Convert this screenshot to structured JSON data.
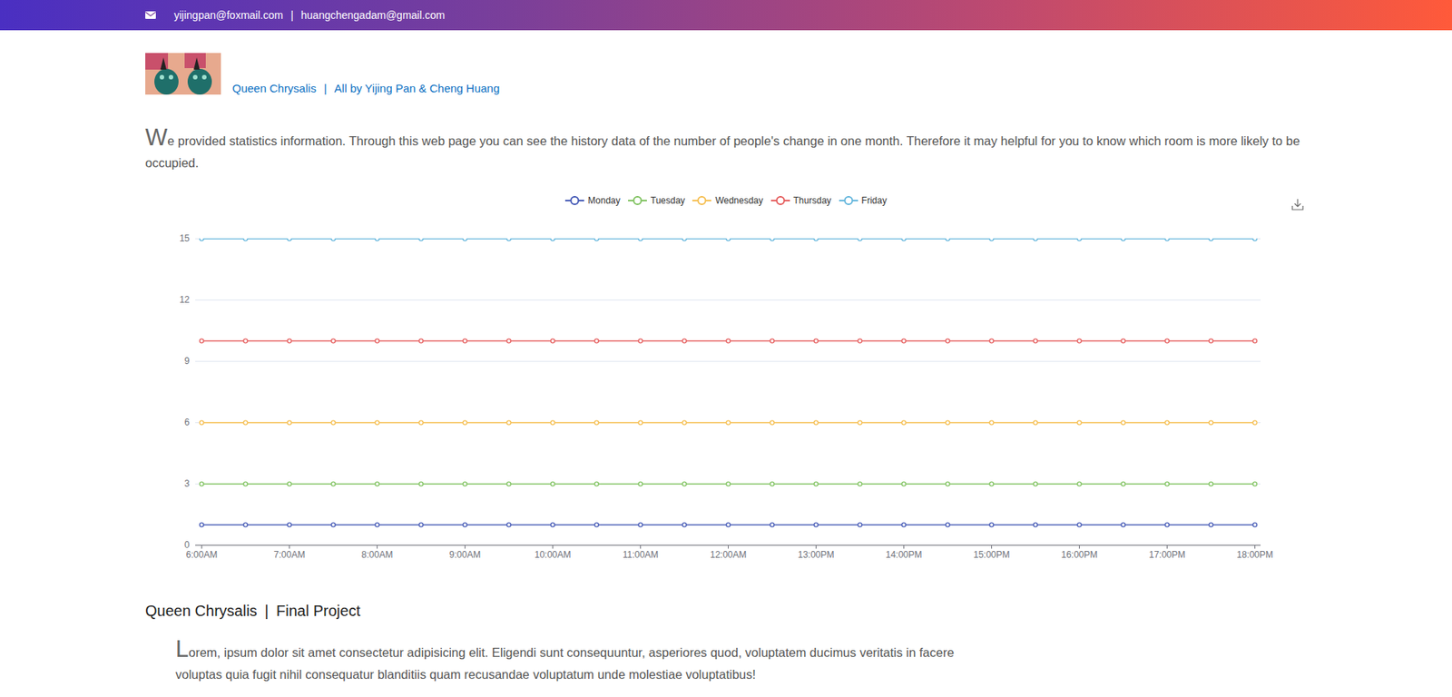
{
  "page": {
    "header": {
      "emails": [
        "yijingpan@foxmail.com",
        "huangchengadam@gmail.com"
      ],
      "separator": "|"
    },
    "brand": {
      "title": "Queen Chrysalis",
      "credit": "All by Yijing Pan & Cheng Huang",
      "separator": "|"
    },
    "intro": "We provided statistics information. Through this web page you can see the history data of the number of people's change in one month. Therefore it may helpful for you to know which room is more likely to be occupied.",
    "footer": {
      "title": "Queen Chrysalis",
      "subtitle": "Final Project",
      "separator": "|",
      "text": "Lorem, ipsum dolor sit amet consectetur adipisicing elit. Eligendi sunt consequuntur, asperiores quod, voluptatem ducimus veritatis in facere voluptas quia fugit nihil consequatur blanditiis quam recusandae voluptatum unde molestiae voluptatibus!"
    }
  },
  "chart_data": {
    "type": "line",
    "categories": [
      "6:00AM",
      null,
      "7:00AM",
      null,
      "8:00AM",
      null,
      "9:00AM",
      null,
      "10:00AM",
      null,
      "11:00AM",
      null,
      "12:00AM",
      null,
      "13:00PM",
      null,
      "14:00PM",
      null,
      "15:00PM",
      null,
      "16:00PM",
      null,
      "17:00PM",
      null,
      "18:00PM"
    ],
    "series": [
      {
        "name": "Monday",
        "color": "#4358b5",
        "values": [
          1,
          1,
          1,
          1,
          1,
          1,
          1,
          1,
          1,
          1,
          1,
          1,
          1,
          1,
          1,
          1,
          1,
          1,
          1,
          1,
          1,
          1,
          1,
          1,
          1
        ]
      },
      {
        "name": "Tuesday",
        "color": "#7fc25f",
        "values": [
          3,
          3,
          3,
          3,
          3,
          3,
          3,
          3,
          3,
          3,
          3,
          3,
          3,
          3,
          3,
          3,
          3,
          3,
          3,
          3,
          3,
          3,
          3,
          3,
          3
        ]
      },
      {
        "name": "Wednesday",
        "color": "#f5be4f",
        "values": [
          6,
          6,
          6,
          6,
          6,
          6,
          6,
          6,
          6,
          6,
          6,
          6,
          6,
          6,
          6,
          6,
          6,
          6,
          6,
          6,
          6,
          6,
          6,
          6,
          6
        ]
      },
      {
        "name": "Thursday",
        "color": "#e55b5b",
        "values": [
          10,
          10,
          10,
          10,
          10,
          10,
          10,
          10,
          10,
          10,
          10,
          10,
          10,
          10,
          10,
          10,
          10,
          10,
          10,
          10,
          10,
          10,
          10,
          10,
          10
        ]
      },
      {
        "name": "Friday",
        "color": "#62b5dc",
        "values": [
          15,
          15,
          15,
          15,
          15,
          15,
          15,
          15,
          15,
          15,
          15,
          15,
          15,
          15,
          15,
          15,
          15,
          15,
          15,
          15,
          15,
          15,
          15,
          15,
          15
        ]
      }
    ],
    "ylim": [
      0,
      15
    ],
    "yticks": [
      0,
      3,
      6,
      9,
      12,
      15
    ],
    "grid": true,
    "legend": "top",
    "marker": "circle"
  }
}
